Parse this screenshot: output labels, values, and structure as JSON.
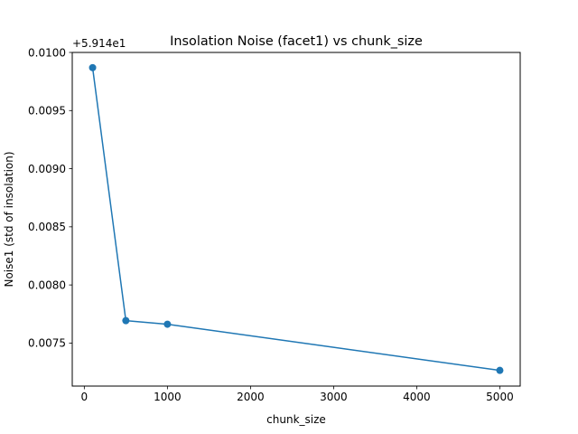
{
  "chart_data": {
    "type": "line",
    "title": "Insolation Noise (facet1) vs chunk_size",
    "xlabel": "chunk_size",
    "ylabel": "Noise1 (std of insolation)",
    "y_offset_label": "+5.914e1",
    "y_offset": 59.14,
    "xlim": [
      -145,
      5245
    ],
    "ylim": [
      0.00713,
      0.01
    ],
    "x_ticks": [
      0,
      1000,
      2000,
      3000,
      4000,
      5000
    ],
    "x_tick_labels": [
      "0",
      "1000",
      "2000",
      "3000",
      "4000",
      "5000"
    ],
    "y_ticks": [
      0.0075,
      0.008,
      0.0085,
      0.009,
      0.0095,
      0.01
    ],
    "y_tick_labels": [
      "0.0075",
      "0.0080",
      "0.0085",
      "0.0090",
      "0.0095",
      "0.0100"
    ],
    "grid": false,
    "series": [
      {
        "color": "#1f77b4",
        "marker": "circle",
        "x": [
          100,
          500,
          1000,
          5000
        ],
        "y": [
          0.009869,
          0.007693,
          0.007662,
          0.007265
        ]
      }
    ]
  }
}
